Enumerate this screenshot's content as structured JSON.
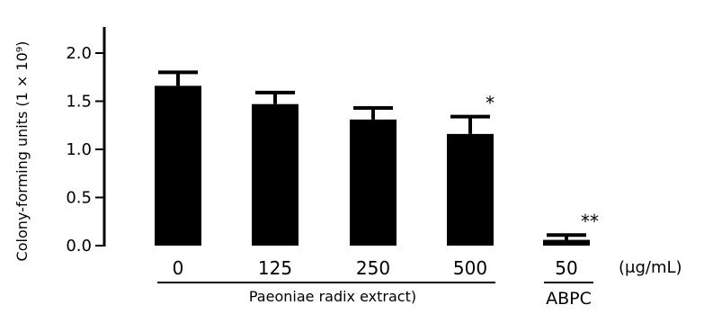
{
  "chart_data": {
    "type": "bar",
    "ylabel": "Colony-forming units (1 × 10⁹)",
    "ylim": [
      0,
      2.0
    ],
    "yticks": [
      "0.0",
      "0.5",
      "1.0",
      "1.5",
      "2.0"
    ],
    "unit_label": "(μg/mL)",
    "bar_color": "#000000",
    "groups": [
      {
        "name": "Paeoniae radix extract)",
        "categories": [
          "0",
          "125",
          "250",
          "500"
        ],
        "values": [
          1.66,
          1.47,
          1.31,
          1.16
        ],
        "errors": [
          0.14,
          0.12,
          0.12,
          0.18
        ],
        "significance": [
          "",
          "",
          "",
          "*"
        ]
      },
      {
        "name": "ABPC",
        "categories": [
          "50"
        ],
        "values": [
          0.06
        ],
        "errors": [
          0.05
        ],
        "significance": [
          "**"
        ]
      }
    ]
  }
}
